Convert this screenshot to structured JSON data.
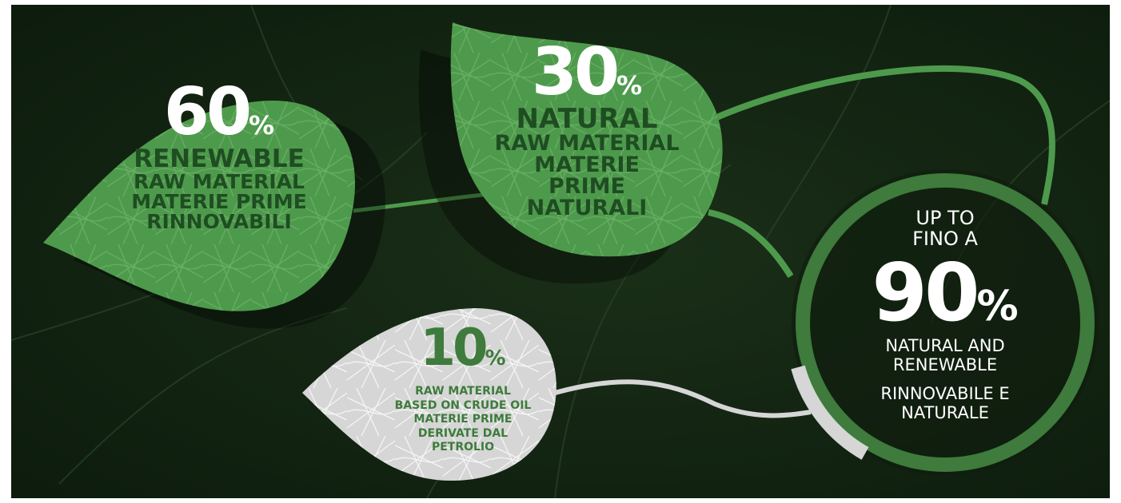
{
  "colors": {
    "background": "#10200f",
    "green_leaf": "#4e9a4c",
    "green_ring": "#3e7b3c",
    "grey_leaf": "#d5d6d5",
    "dark_text": "#1f4d22",
    "white": "#ffffff"
  },
  "diagram": {
    "renewable": {
      "value": "60",
      "unit": "%",
      "line1": "RENEWABLE",
      "line2": "RAW MATERIAL",
      "line3": "MATERIE PRIME",
      "line4": "RINNOVABILI"
    },
    "natural": {
      "value": "30",
      "unit": "%",
      "line1": "NATURAL",
      "line2": "RAW MATERIAL",
      "line3": "MATERIE",
      "line4": "PRIME",
      "line5": "NATURALI"
    },
    "crude_oil": {
      "value": "10",
      "unit": "%",
      "line1": "RAW MATERIAL",
      "line2": "BASED ON CRUDE OIL",
      "line3": "MATERIE PRIME",
      "line4": "DERIVATE DAL",
      "line5": "PETROLIO"
    },
    "total": {
      "line1": "UP TO",
      "line2": "FINO A",
      "value": "90",
      "unit": "%",
      "line3": "NATURAL AND",
      "line4": "RENEWABLE",
      "line5": "RINNOVABILE E",
      "line6": "NATURALE"
    }
  }
}
